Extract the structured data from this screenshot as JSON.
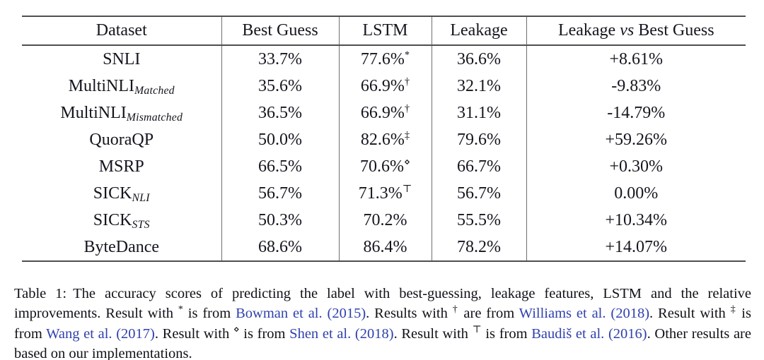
{
  "table": {
    "columns": [
      [
        {
          "t": "Dataset"
        }
      ],
      [
        {
          "t": "Best Guess"
        }
      ],
      [
        {
          "t": "LSTM"
        }
      ],
      [
        {
          "t": "Leakage"
        }
      ],
      [
        {
          "t": "Leakage "
        },
        {
          "t": "vs",
          "style": "italic"
        },
        {
          "t": " Best Guess"
        }
      ]
    ],
    "column_keys": [
      "dataset",
      "best-guess",
      "lstm",
      "leakage",
      "leakage-vs-best-guess"
    ],
    "rows": [
      {
        "dataset": {
          "base": "SNLI",
          "sub": ""
        },
        "best_guess": "33.7%",
        "lstm": "77.6%",
        "lstm_sup": "*",
        "leakage": "36.6%",
        "delta": "+8.61%"
      },
      {
        "dataset": {
          "base": "MultiNLI",
          "sub": "Matched"
        },
        "best_guess": "35.6%",
        "lstm": "66.9%",
        "lstm_sup": "†",
        "leakage": "32.1%",
        "delta": "-9.83%"
      },
      {
        "dataset": {
          "base": "MultiNLI",
          "sub": "Mismatched"
        },
        "best_guess": "36.5%",
        "lstm": "66.9%",
        "lstm_sup": "†",
        "leakage": "31.1%",
        "delta": "-14.79%"
      },
      {
        "dataset": {
          "base": "QuoraQP",
          "sub": ""
        },
        "best_guess": "50.0%",
        "lstm": "82.6%",
        "lstm_sup": "‡",
        "leakage": "79.6%",
        "delta": "+59.26%"
      },
      {
        "dataset": {
          "base": "MSRP",
          "sub": ""
        },
        "best_guess": "66.5%",
        "lstm": "70.6%",
        "lstm_sup": "⋄",
        "leakage": "66.7%",
        "delta": "+0.30%"
      },
      {
        "dataset": {
          "base": "SICK",
          "sub": "NLI"
        },
        "best_guess": "56.7%",
        "lstm": "71.3%",
        "lstm_sup": "⊤",
        "leakage": "56.7%",
        "delta": "0.00%"
      },
      {
        "dataset": {
          "base": "SICK",
          "sub": "STS"
        },
        "best_guess": "50.3%",
        "lstm": "70.2%",
        "lstm_sup": "",
        "leakage": "55.5%",
        "delta": "+10.34%"
      },
      {
        "dataset": {
          "base": "ByteDance",
          "sub": ""
        },
        "best_guess": "68.6%",
        "lstm": "86.4%",
        "lstm_sup": "",
        "leakage": "78.2%",
        "delta": "+14.07%"
      }
    ]
  },
  "caption": {
    "segments": [
      {
        "t": "Table 1:",
        "style": "label"
      },
      {
        "t": "The accuracy scores of predicting the label with best-guessing, leakage features, LSTM and the relative improvements. Result with "
      },
      {
        "t": "*",
        "style": "sup"
      },
      {
        "t": " is from "
      },
      {
        "t": "Bowman et al. (2015)",
        "style": "cite"
      },
      {
        "t": ". Results with "
      },
      {
        "t": "†",
        "style": "sup"
      },
      {
        "t": " are from "
      },
      {
        "t": "Williams et al. (2018)",
        "style": "cite"
      },
      {
        "t": ". Result with "
      },
      {
        "t": "‡",
        "style": "sup"
      },
      {
        "t": " is from "
      },
      {
        "t": "Wang et al. (2017)",
        "style": "cite"
      },
      {
        "t": ". Result with "
      },
      {
        "t": "⋄",
        "style": "sup"
      },
      {
        "t": " is from "
      },
      {
        "t": "Shen et al. (2018)",
        "style": "cite"
      },
      {
        "t": ". Result with "
      },
      {
        "t": "⊤",
        "style": "sup"
      },
      {
        "t": " is from "
      },
      {
        "t": "Baudiš et al. (2016)",
        "style": "cite"
      },
      {
        "t": ". Other results are based on our implementations."
      }
    ]
  }
}
